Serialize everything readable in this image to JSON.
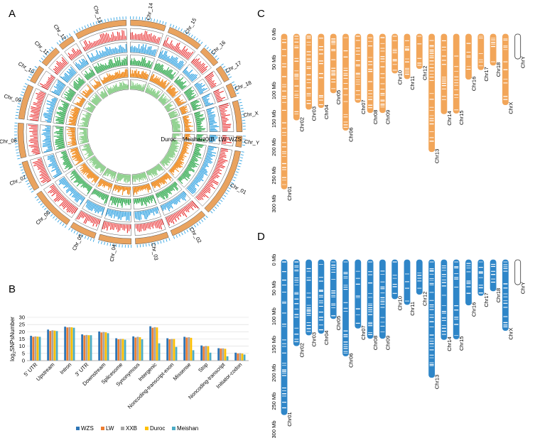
{
  "panels": {
    "a": "A",
    "b": "B",
    "c": "C",
    "d": "D"
  },
  "colors": {
    "orange_chr": "#f2a65a",
    "blue_chr": "#2f86c8",
    "wzs": "#2e75b6",
    "lw": "#ed7d31",
    "xxb": "#a5a5a5",
    "duroc": "#ffc000",
    "meishan": "#4bacc6",
    "ring_red": "#e8292a",
    "ring_blue": "#1f9be0",
    "ring_green": "#2ba84a",
    "ring_orange": "#f08a1c",
    "ring_lightgreen": "#8fd18e",
    "ring_tan": "#e9a35f"
  },
  "circos": {
    "chromosomes": [
      "Chr_01",
      "Chr_02",
      "Chr_03",
      "Chr_04",
      "Chr_05",
      "Chr_06",
      "Chr_07",
      "Chr_08",
      "Chr_09",
      "Chr_10",
      "Chr_11",
      "Chr_12",
      "Chr_13",
      "Chr_14",
      "Chr_15",
      "Chr_16",
      "Chr_17",
      "Chr_18",
      "Chr_X",
      "Chr_Y"
    ],
    "track_labels": [
      "Duroc",
      "Meishan",
      "XXB",
      "LW",
      "WZS"
    ]
  },
  "chart_data": [
    {
      "type": "bar",
      "title": "",
      "ylabel": "log2SNPsNumber",
      "ylabel_base": "log",
      "ylabel_sup": "2",
      "ylabel_rest": "SNPsNumber",
      "xlabel": "",
      "ylim": [
        0,
        30
      ],
      "yticks": [
        0,
        5,
        10,
        15,
        20,
        25,
        30
      ],
      "grid": true,
      "legend_position": "bottom",
      "categories": [
        "5' UTR",
        "Upstream",
        "Intron",
        "3' UTR",
        "Downstream",
        "Splicesome",
        "Synonymous",
        "Intergenic",
        "Noncoding-transcript-exon",
        "Missense",
        "Stop",
        "Noncoding-transcript",
        "Initiator-codon"
      ],
      "series": [
        {
          "name": "WZS",
          "values": [
            17.2,
            21.5,
            23.5,
            18.2,
            20.2,
            15.5,
            16.8,
            23.8,
            15.5,
            16.5,
            10.5,
            8.6,
            5.5
          ]
        },
        {
          "name": "LW",
          "values": [
            16.5,
            20.6,
            23.0,
            17.5,
            19.5,
            14.8,
            16.0,
            22.8,
            14.8,
            16.0,
            9.8,
            8.4,
            5.0
          ]
        },
        {
          "name": "XXB",
          "values": [
            16.8,
            21.0,
            23.2,
            17.8,
            19.8,
            15.0,
            16.5,
            23.2,
            15.0,
            16.2,
            10.2,
            8.5,
            5.2
          ]
        },
        {
          "name": "Duroc",
          "values": [
            16.6,
            20.8,
            23.1,
            17.6,
            19.6,
            15.0,
            16.2,
            23.0,
            15.0,
            15.8,
            10.0,
            8.2,
            4.9
          ]
        },
        {
          "name": "Meishan",
          "values": [
            16.5,
            20.5,
            22.8,
            17.6,
            19.0,
            14.5,
            14.8,
            12.0,
            9.5,
            7.2,
            5.5,
            3.0,
            4.2
          ]
        }
      ]
    },
    {
      "type": "bar",
      "title": "",
      "ylabel": "",
      "ylim": [
        0,
        300
      ],
      "yticks": [
        "0 Mb",
        "50 Mb",
        "100 Mb",
        "150 Mb",
        "200 Mb",
        "250 Mb",
        "300 Mb"
      ],
      "tick_values": [
        0,
        50,
        100,
        150,
        200,
        250,
        300
      ],
      "categories": [
        "Chr01",
        "Chr02",
        "Chr03",
        "Chr04",
        "Chr05",
        "Chr06",
        "Chr07",
        "Chr08",
        "Chr09",
        "Chr10",
        "Chr11",
        "Chr12",
        "Chr13",
        "Chr14",
        "Chr15",
        "Chr16",
        "Chr17",
        "Chr18",
        "ChrX",
        "ChrY"
      ],
      "values": [
        274,
        152,
        133,
        130,
        104,
        170,
        121,
        139,
        139,
        69,
        79,
        61,
        208,
        141,
        140,
        80,
        63,
        55,
        125,
        44
      ],
      "series_color": "orange"
    },
    {
      "type": "bar",
      "title": "",
      "ylabel": "",
      "ylim": [
        0,
        300
      ],
      "yticks": [
        "0 Mb",
        "50 Mb",
        "100 Mb",
        "150 Mb",
        "200 Mb",
        "250 Mb",
        "300 Mb"
      ],
      "tick_values": [
        0,
        50,
        100,
        150,
        200,
        250,
        300
      ],
      "categories": [
        "Chr01",
        "Chr02",
        "Chr03",
        "Chr04",
        "Chr05",
        "Chr06",
        "Chr07",
        "Chr08",
        "Chr09",
        "Chr10",
        "Chr11",
        "Chr12",
        "Chr13",
        "Chr14",
        "Chr15",
        "Chr16",
        "Chr17",
        "Chr18",
        "ChrX",
        "ChrY"
      ],
      "values": [
        274,
        152,
        133,
        130,
        104,
        170,
        121,
        139,
        139,
        69,
        79,
        61,
        208,
        141,
        140,
        80,
        63,
        55,
        125,
        44
      ],
      "series_color": "blue"
    }
  ]
}
